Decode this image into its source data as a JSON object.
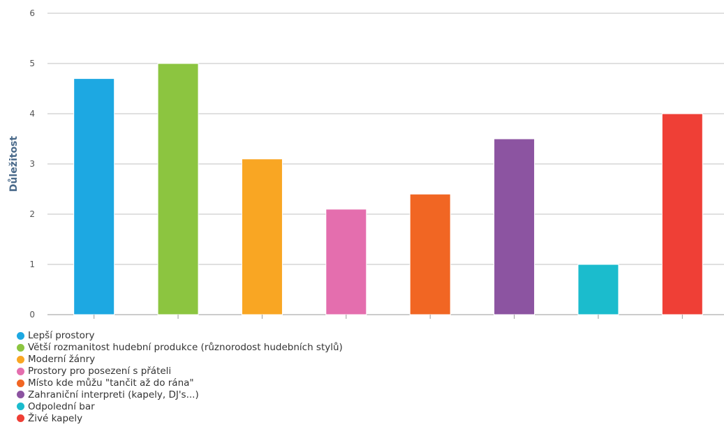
{
  "chart_data": {
    "type": "bar",
    "ylabel": "Důležitost",
    "ylim": [
      0,
      6
    ],
    "yticks": [
      0,
      1,
      2,
      3,
      4,
      5,
      6
    ],
    "grid": true,
    "legend_position": "bottom-left",
    "categories": [
      "Lepší prostory",
      "Větší rozmanitost hudební produkce (různorodost hudebních stylů)",
      "Moderní žánry",
      "Prostory pro posezení s přáteli",
      "Místo kde můžu \"tančit až do rána\"",
      "Zahraniční interpreti (kapely, DJ's...)",
      "Odpolední bar",
      "Živé kapely"
    ],
    "values": [
      4.7,
      5.0,
      3.1,
      2.1,
      2.4,
      3.5,
      1.0,
      4.0
    ],
    "colors": [
      "#1da8e2",
      "#8cc540",
      "#f9a623",
      "#e46eae",
      "#f16623",
      "#8c54a1",
      "#1bbccd",
      "#ef3f36"
    ]
  }
}
